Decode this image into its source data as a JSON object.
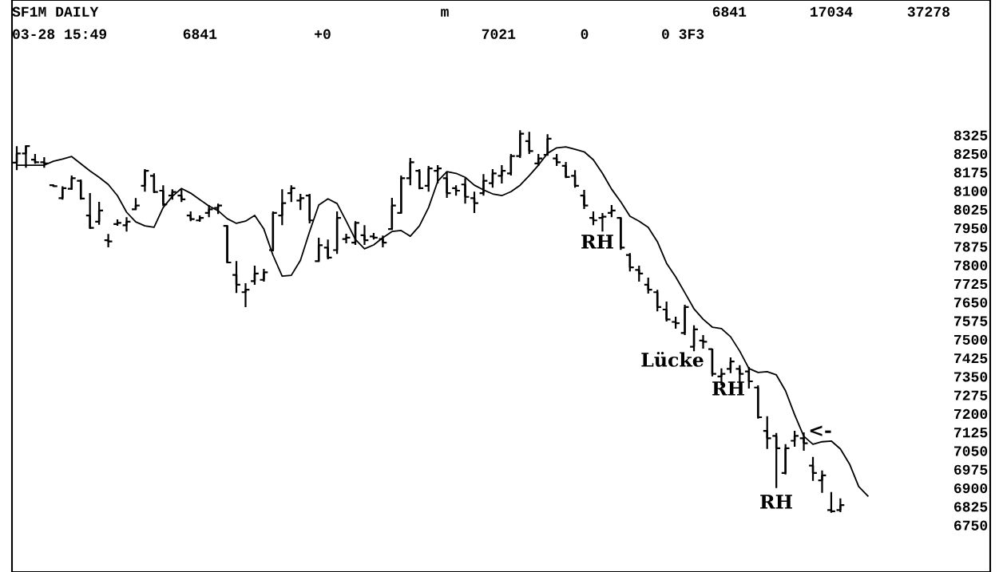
{
  "chart_data": {
    "type": "candlestick",
    "annotations": [
      "SF1M DAILY",
      "m",
      "6841",
      "17034",
      "37278",
      "03-28 15:49",
      "6841",
      "+0",
      "7021",
      "0",
      "0 3F3",
      "RH",
      "Lücke",
      "RH",
      "RH",
      "<-"
    ],
    "categories": [
      null,
      null,
      null,
      null,
      null,
      null,
      null,
      null,
      null,
      null,
      null,
      null,
      null,
      null,
      null,
      null,
      null,
      null,
      null,
      null,
      null,
      null,
      null,
      null,
      null,
      null,
      null,
      null,
      null,
      null,
      null,
      null,
      null,
      null,
      null,
      null,
      null,
      null,
      null,
      null,
      null,
      null,
      null,
      null,
      null,
      null,
      null,
      null,
      null,
      null,
      null,
      null,
      null,
      null,
      null,
      null,
      null,
      null,
      null,
      null,
      null,
      null,
      null,
      null,
      null,
      null,
      null,
      null,
      null,
      null,
      null,
      null,
      null,
      null,
      null,
      null,
      null,
      null,
      null,
      null,
      null,
      null,
      null,
      null,
      null,
      null,
      null,
      null,
      null,
      null,
      null,
      null,
      null,
      null
    ],
    "color": "#000000",
    "ohlc": [
      [
        8213,
        8280,
        8183,
        8250
      ],
      [
        8250,
        8283,
        8193,
        8280
      ],
      [
        8225,
        8248,
        8209,
        8215
      ],
      [
        8215,
        8235,
        8193,
        8210
      ],
      [
        8122,
        8125,
        8115,
        8118
      ],
      [
        8070,
        8118,
        8064,
        8110
      ],
      [
        8108,
        8161,
        8103,
        8150
      ],
      [
        8140,
        8145,
        8064,
        8068
      ],
      [
        8000,
        8090,
        7945,
        7950
      ],
      [
        7975,
        8055,
        7962,
        8020
      ],
      [
        7900,
        7925,
        7871,
        7895
      ],
      [
        7965,
        7984,
        7958,
        7970
      ],
      [
        7960,
        7993,
        7935,
        7975
      ],
      [
        8025,
        8070,
        8022,
        8040
      ],
      [
        8120,
        8187,
        8096,
        8180
      ],
      [
        8160,
        8170,
        8090,
        8095
      ],
      [
        8100,
        8122,
        8038,
        8045
      ],
      [
        8080,
        8106,
        8064,
        8095
      ],
      [
        8080,
        8106,
        8054,
        8065
      ],
      [
        8000,
        8016,
        7977,
        7985
      ],
      [
        7980,
        8000,
        7974,
        7990
      ],
      [
        8010,
        8042,
        7993,
        8025
      ],
      [
        8030,
        8048,
        8006,
        8040
      ],
      [
        7958,
        7961,
        7807,
        7810
      ],
      [
        7760,
        7816,
        7687,
        7720
      ],
      [
        7690,
        7726,
        7630,
        7700
      ],
      [
        7735,
        7797,
        7720,
        7765
      ],
      [
        7740,
        7784,
        7733,
        7770
      ],
      [
        7860,
        8016,
        7855,
        8010
      ],
      [
        8000,
        8106,
        7961,
        8050
      ],
      [
        8090,
        8122,
        8054,
        8110
      ],
      [
        8060,
        8087,
        8022,
        8070
      ],
      [
        8080,
        8087,
        7968,
        7980
      ],
      [
        7815,
        7910,
        7813,
        7880
      ],
      [
        7870,
        7903,
        7823,
        7830
      ],
      [
        7860,
        8016,
        7845,
        7990
      ],
      [
        7905,
        7926,
        7887,
        7910
      ],
      [
        7890,
        7977,
        7881,
        7970
      ],
      [
        7920,
        7961,
        7881,
        7900
      ],
      [
        7915,
        7929,
        7903,
        7910
      ],
      [
        7905,
        7919,
        7871,
        7890
      ],
      [
        7945,
        8071,
        7942,
        8040
      ],
      [
        8010,
        8161,
        8010,
        8150
      ],
      [
        8150,
        8232,
        8122,
        8215
      ],
      [
        8180,
        8187,
        8106,
        8110
      ],
      [
        8120,
        8200,
        8096,
        8190
      ],
      [
        8180,
        8203,
        8129,
        8190
      ],
      [
        8150,
        8177,
        8071,
        8090
      ],
      [
        8110,
        8122,
        8080,
        8100
      ],
      [
        8125,
        8151,
        8048,
        8075
      ],
      [
        8070,
        8096,
        8010,
        8050
      ],
      [
        8090,
        8167,
        8080,
        8140
      ],
      [
        8130,
        8187,
        8112,
        8170
      ],
      [
        8160,
        8203,
        8129,
        8180
      ],
      [
        8170,
        8248,
        8161,
        8240
      ],
      [
        8240,
        8344,
        8232,
        8330
      ],
      [
        8300,
        8338,
        8248,
        8260
      ],
      [
        8210,
        8248,
        8200,
        8230
      ],
      [
        8245,
        8328,
        8241,
        8310
      ],
      [
        8230,
        8248,
        8200,
        8215
      ],
      [
        8200,
        8216,
        8151,
        8155
      ],
      [
        8160,
        8183,
        8112,
        8120
      ],
      [
        8080,
        8103,
        8026,
        8040
      ],
      [
        7990,
        8016,
        7961,
        7980
      ],
      [
        7990,
        8010,
        7935,
        7995
      ],
      [
        8010,
        8042,
        7993,
        8020
      ],
      [
        7990,
        7993,
        7861,
        7870
      ],
      [
        7840,
        7848,
        7774,
        7790
      ],
      [
        7780,
        7797,
        7733,
        7765
      ],
      [
        7720,
        7749,
        7684,
        7700
      ],
      [
        7690,
        7700,
        7613,
        7630
      ],
      [
        7620,
        7652,
        7572,
        7580
      ],
      [
        7570,
        7591,
        7543,
        7565
      ],
      [
        7525,
        7639,
        7517,
        7630
      ],
      [
        7470,
        7556,
        7452,
        7540
      ],
      [
        7495,
        7517,
        7462,
        7490
      ],
      [
        7460,
        7462,
        7350,
        7360
      ],
      [
        7350,
        7382,
        7314,
        7360
      ],
      [
        7380,
        7427,
        7363,
        7410
      ],
      [
        7380,
        7395,
        7324,
        7360
      ],
      [
        7370,
        7388,
        7301,
        7330
      ],
      [
        7305,
        7314,
        7179,
        7185
      ],
      [
        7130,
        7189,
        7057,
        7100
      ],
      [
        7110,
        7121,
        6899,
        7060
      ],
      [
        6960,
        7076,
        6954,
        7060
      ],
      [
        7090,
        7130,
        7066,
        7110
      ],
      [
        7100,
        7124,
        7050,
        7080
      ],
      [
        6990,
        7025,
        6928,
        6960
      ],
      [
        6930,
        6970,
        6880,
        6950
      ],
      [
        6810,
        6883,
        6799,
        6805
      ],
      [
        6810,
        6857,
        6802,
        6830
      ],
      null,
      null,
      null
    ],
    "series": [
      {
        "type": "line",
        "color": "#000000",
        "values": [
          8203,
          8203,
          8203,
          8203,
          8219,
          8228,
          8238,
          8209,
          8180,
          8154,
          8125,
          8080,
          8013,
          7974,
          7958,
          7952,
          8032,
          8077,
          8109,
          8090,
          8064,
          8038,
          8019,
          7987,
          7968,
          7977,
          8000,
          7945,
          7839,
          7755,
          7758,
          7819,
          7935,
          8042,
          8067,
          8048,
          7977,
          7903,
          7865,
          7881,
          7910,
          7935,
          7939,
          7916,
          7958,
          8032,
          8138,
          8177,
          8170,
          8154,
          8122,
          8103,
          8087,
          8080,
          8096,
          8122,
          8161,
          8203,
          8251,
          8273,
          8277,
          8267,
          8257,
          8225,
          8170,
          8106,
          8055,
          7997,
          7977,
          7952,
          7894,
          7807,
          7752,
          7688,
          7623,
          7581,
          7549,
          7543,
          7510,
          7452,
          7382,
          7366,
          7369,
          7356,
          7292,
          7195,
          7108,
          7076,
          7086,
          7089,
          7057,
          6996,
          6905,
          6867
        ]
      }
    ],
    "ylim": [
      6560,
      8870
    ],
    "yticks": [
      8325,
      8250,
      8175,
      8100,
      8025,
      7950,
      7875,
      7800,
      7725,
      7650,
      7575,
      7500,
      7425,
      7350,
      7275,
      7200,
      7125,
      7050,
      6975,
      6900,
      6825,
      6750
    ],
    "tick_labels": "y",
    "grid": false
  }
}
